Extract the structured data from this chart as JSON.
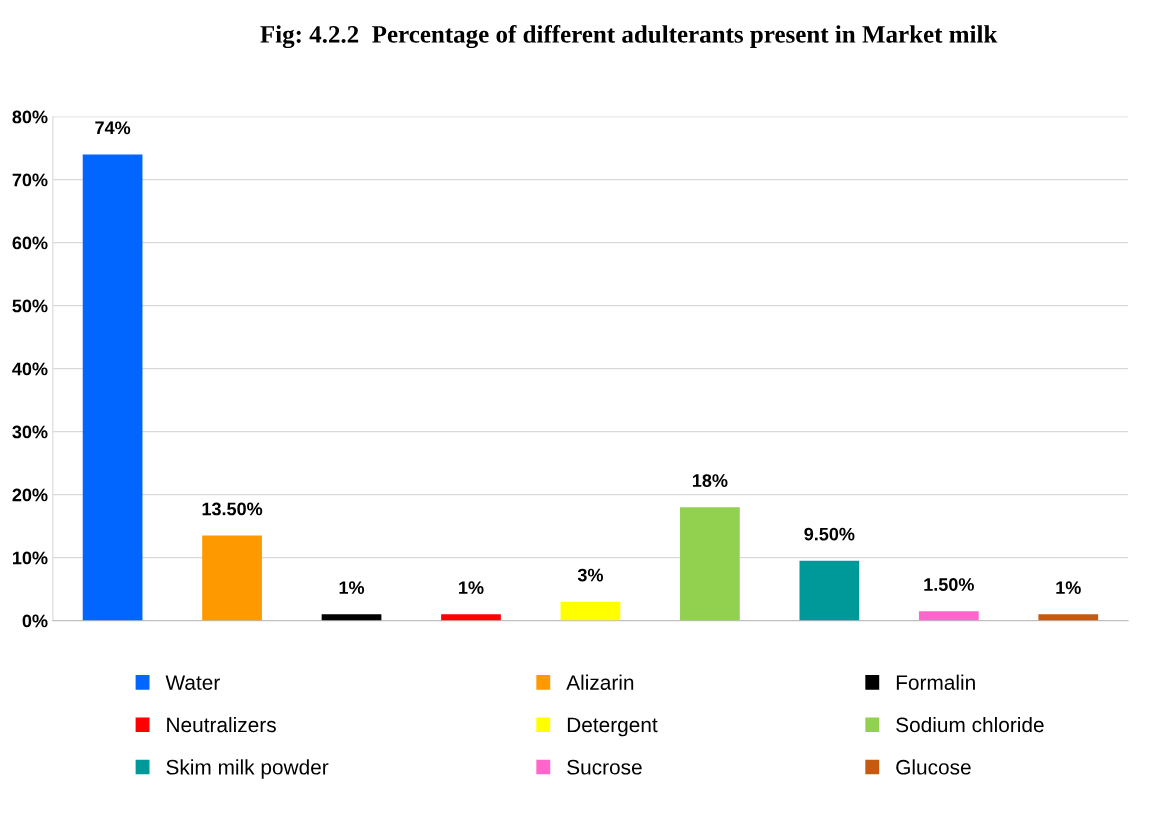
{
  "chart_data": {
    "type": "bar",
    "title": "Fig: 4.2.2  Percentage of different adulterants present in Market milk",
    "categories": [
      null,
      null,
      null,
      null,
      null,
      null,
      null,
      null,
      null
    ],
    "series": [
      {
        "name": "Water",
        "color": "#0066ff",
        "values": [
          74,
          null,
          null,
          null,
          null,
          null,
          null,
          null,
          null
        ],
        "value_labels": [
          "74%",
          null,
          null,
          null,
          null,
          null,
          null,
          null,
          null
        ]
      },
      {
        "name": "Alizarin",
        "color": "#ff9900",
        "values": [
          null,
          13.5,
          null,
          null,
          null,
          null,
          null,
          null,
          null
        ],
        "value_labels": [
          null,
          "13.50%",
          null,
          null,
          null,
          null,
          null,
          null,
          null
        ]
      },
      {
        "name": "Formalin",
        "color": "#000000",
        "values": [
          null,
          null,
          1,
          null,
          null,
          null,
          null,
          null,
          null
        ],
        "value_labels": [
          null,
          null,
          "1%",
          null,
          null,
          null,
          null,
          null,
          null
        ]
      },
      {
        "name": "Neutralizers",
        "color": "#ff0000",
        "values": [
          null,
          null,
          null,
          1,
          null,
          null,
          null,
          null,
          null
        ],
        "value_labels": [
          null,
          null,
          null,
          "1%",
          null,
          null,
          null,
          null,
          null
        ]
      },
      {
        "name": "Detergent",
        "color": "#ffff00",
        "values": [
          null,
          null,
          null,
          null,
          3,
          null,
          null,
          null,
          null
        ],
        "value_labels": [
          null,
          null,
          null,
          null,
          "3%",
          null,
          null,
          null,
          null
        ]
      },
      {
        "name": "Sodium chloride",
        "color": "#92d050",
        "values": [
          null,
          null,
          null,
          null,
          null,
          18,
          null,
          null,
          null
        ],
        "value_labels": [
          null,
          null,
          null,
          null,
          null,
          "18%",
          null,
          null,
          null
        ]
      },
      {
        "name": "Skim milk powder",
        "color": "#009999",
        "values": [
          null,
          null,
          null,
          null,
          null,
          null,
          9.5,
          null,
          null
        ],
        "value_labels": [
          null,
          null,
          null,
          null,
          null,
          null,
          "9.50%",
          null,
          null
        ]
      },
      {
        "name": "Sucrose",
        "color": "#ff66cc",
        "values": [
          null,
          null,
          null,
          null,
          null,
          null,
          null,
          1.5,
          null
        ],
        "value_labels": [
          null,
          null,
          null,
          null,
          null,
          null,
          null,
          "1.50%",
          null
        ]
      },
      {
        "name": "Glucose",
        "color": "#c55a11",
        "values": [
          null,
          null,
          null,
          null,
          null,
          null,
          null,
          null,
          1
        ],
        "value_labels": [
          null,
          null,
          null,
          null,
          null,
          null,
          null,
          null,
          "1%"
        ]
      }
    ],
    "ylim": [
      0,
      80
    ],
    "yticks": [
      {
        "value": 0,
        "label": "0%"
      },
      {
        "value": 10,
        "label": "10%"
      },
      {
        "value": 20,
        "label": "20%"
      },
      {
        "value": 30,
        "label": "30%"
      },
      {
        "value": 40,
        "label": "40%"
      },
      {
        "value": 50,
        "label": "50%"
      },
      {
        "value": 60,
        "label": "60%"
      },
      {
        "value": 70,
        "label": "70%"
      },
      {
        "value": 80,
        "label": "80%"
      }
    ],
    "grid": "y",
    "legend": "bottom"
  }
}
